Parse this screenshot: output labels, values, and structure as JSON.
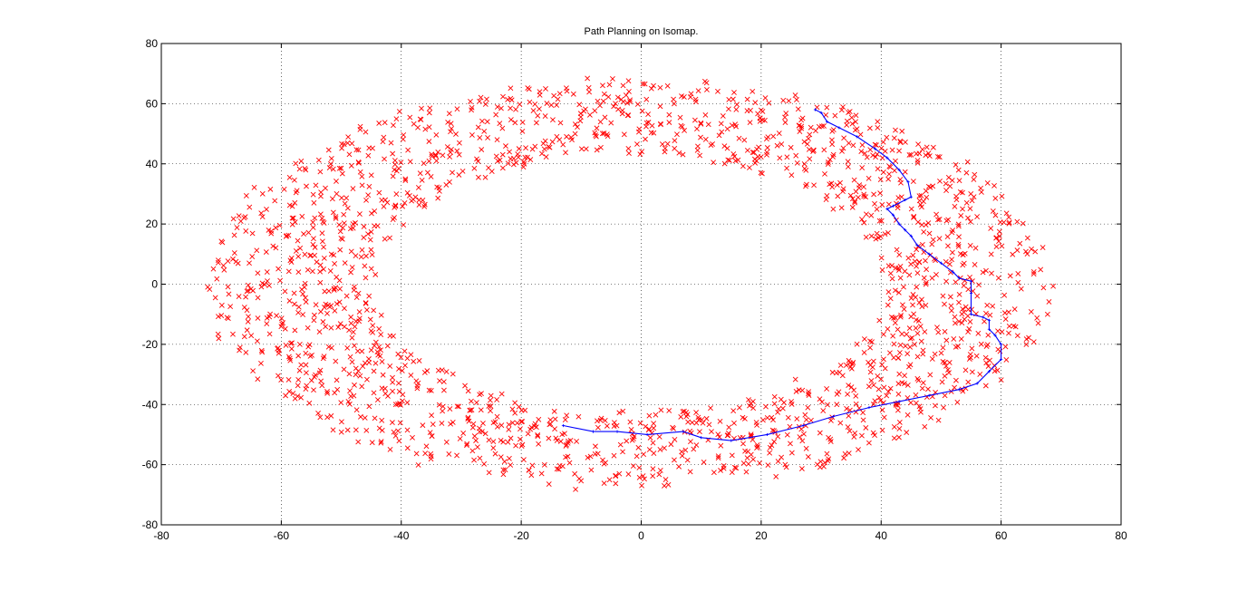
{
  "chart_data": {
    "type": "scatter",
    "title": "Path Planning on Isomap.",
    "xlabel": "",
    "ylabel": "",
    "xlim": [
      -80,
      80
    ],
    "ylim": [
      -80,
      80
    ],
    "xticks": [
      "-80",
      "-60",
      "-40",
      "-20",
      "0",
      "20",
      "40",
      "60",
      "80"
    ],
    "yticks": [
      "-80",
      "-60",
      "-40",
      "-20",
      "0",
      "20",
      "40",
      "60",
      "80"
    ],
    "grid": true,
    "legend": "none",
    "scatter_series": {
      "marker": "x",
      "color": "#ff0000",
      "distribution": "elliptical ring",
      "center": [
        -2,
        0
      ],
      "outer_radii": [
        70,
        68
      ],
      "inner_radii": [
        43,
        43
      ],
      "count": 1900
    },
    "path_series": {
      "color": "#0000ff",
      "points": [
        [
          29,
          58
        ],
        [
          30,
          57
        ],
        [
          31,
          54
        ],
        [
          33,
          52
        ],
        [
          36,
          49
        ],
        [
          39,
          45
        ],
        [
          41,
          42
        ],
        [
          43,
          38
        ],
        [
          44.5,
          34
        ],
        [
          45,
          29
        ],
        [
          44,
          28
        ],
        [
          42,
          26
        ],
        [
          41,
          25
        ],
        [
          42,
          23
        ],
        [
          43,
          20
        ],
        [
          44,
          18
        ],
        [
          45,
          16
        ],
        [
          46,
          13
        ],
        [
          48,
          10
        ],
        [
          50,
          7
        ],
        [
          52,
          4
        ],
        [
          53,
          2
        ],
        [
          55,
          1
        ],
        [
          55,
          -3
        ],
        [
          55,
          -10
        ],
        [
          57,
          -11
        ],
        [
          58,
          -12
        ],
        [
          58,
          -15
        ],
        [
          59,
          -17
        ],
        [
          60,
          -20
        ],
        [
          60,
          -25
        ],
        [
          58,
          -29
        ],
        [
          56,
          -33
        ],
        [
          53,
          -35
        ],
        [
          48,
          -37
        ],
        [
          43,
          -39
        ],
        [
          38,
          -41
        ],
        [
          32,
          -44
        ],
        [
          27,
          -47
        ],
        [
          21,
          -50
        ],
        [
          15,
          -52
        ],
        [
          10,
          -51
        ],
        [
          7,
          -49
        ],
        [
          1,
          -50
        ],
        [
          -4,
          -49
        ],
        [
          -8,
          -49
        ],
        [
          -13,
          -47
        ]
      ]
    }
  }
}
